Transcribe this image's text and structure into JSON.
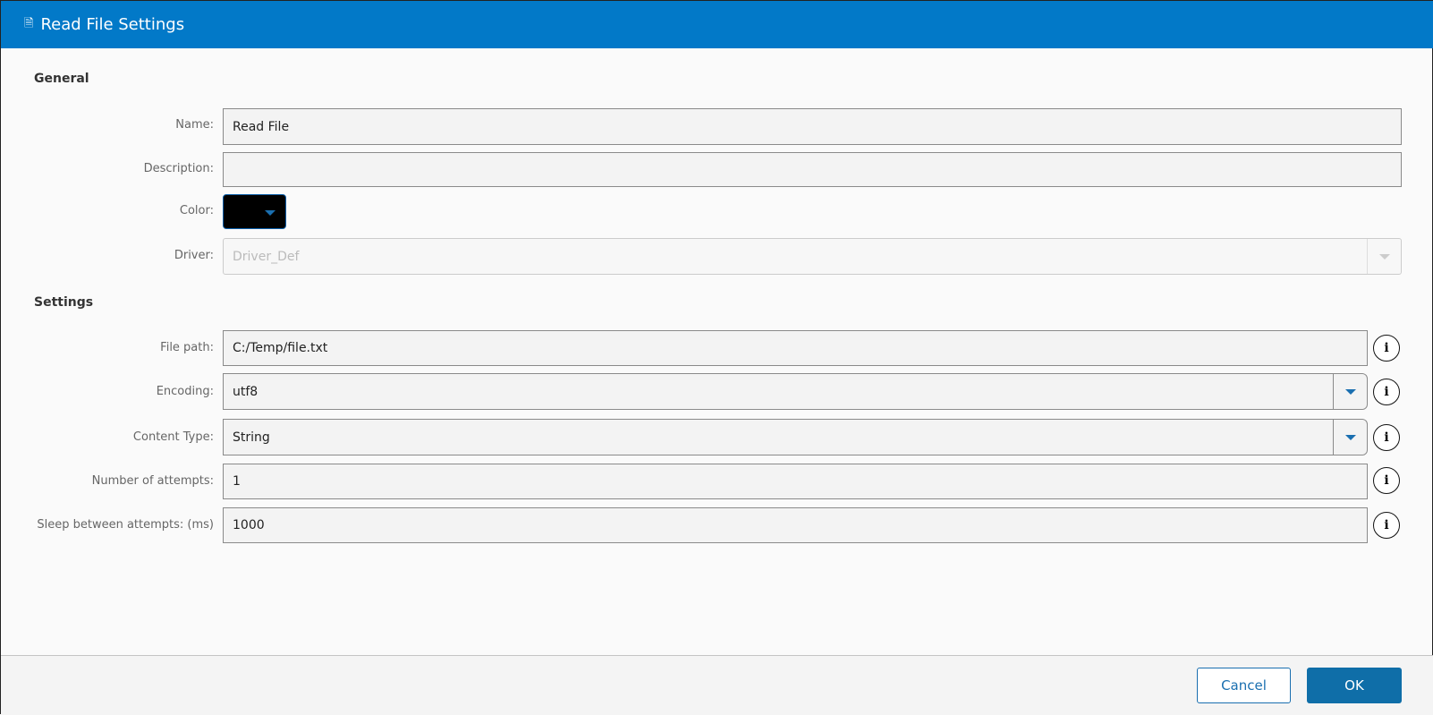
{
  "dialog": {
    "title": "Read File Settings",
    "title_icon": "script-file-icon"
  },
  "general": {
    "heading": "General",
    "name": {
      "label": "Name:",
      "value": "Read File"
    },
    "description": {
      "label": "Description:",
      "value": ""
    },
    "color": {
      "label": "Color:",
      "value": "#000000"
    },
    "driver": {
      "label": "Driver:",
      "value": "Driver_Def"
    }
  },
  "settings": {
    "heading": "Settings",
    "file_path": {
      "label": "File path:",
      "value": "C:/Temp/file.txt"
    },
    "encoding": {
      "label": "Encoding:",
      "value": "utf8"
    },
    "content_type": {
      "label": "Content Type:",
      "value": "String"
    },
    "attempts": {
      "label": "Number of attempts:",
      "value": "1"
    },
    "sleep": {
      "label": "Sleep between attempts: (ms)",
      "value": "1000"
    },
    "info_glyph": "i"
  },
  "footer": {
    "cancel": "Cancel",
    "ok": "OK"
  },
  "colors": {
    "header": "#0279c8",
    "accent": "#0f6ea8"
  }
}
